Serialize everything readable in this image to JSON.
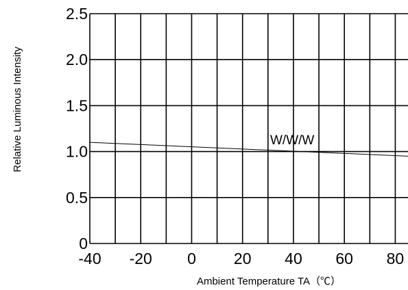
{
  "chart_data": {
    "type": "line",
    "title": "",
    "xlabel": "Ambient Temperature TA（℃）",
    "ylabel": "Relative Luminous Intensity",
    "xlim": [
      -40,
      85
    ],
    "ylim": [
      0,
      2.5
    ],
    "x_ticks": [
      "-40",
      "-20",
      "0",
      "20",
      "40",
      "60",
      "80"
    ],
    "y_ticks": [
      "0",
      "0.5",
      "1.0",
      "1.5",
      "2.0",
      "2.5"
    ],
    "grid": true,
    "series": [
      {
        "name": "W/W/W",
        "color": "#000000",
        "x": [
          -40,
          85
        ],
        "y": [
          1.1,
          0.95
        ]
      }
    ]
  }
}
